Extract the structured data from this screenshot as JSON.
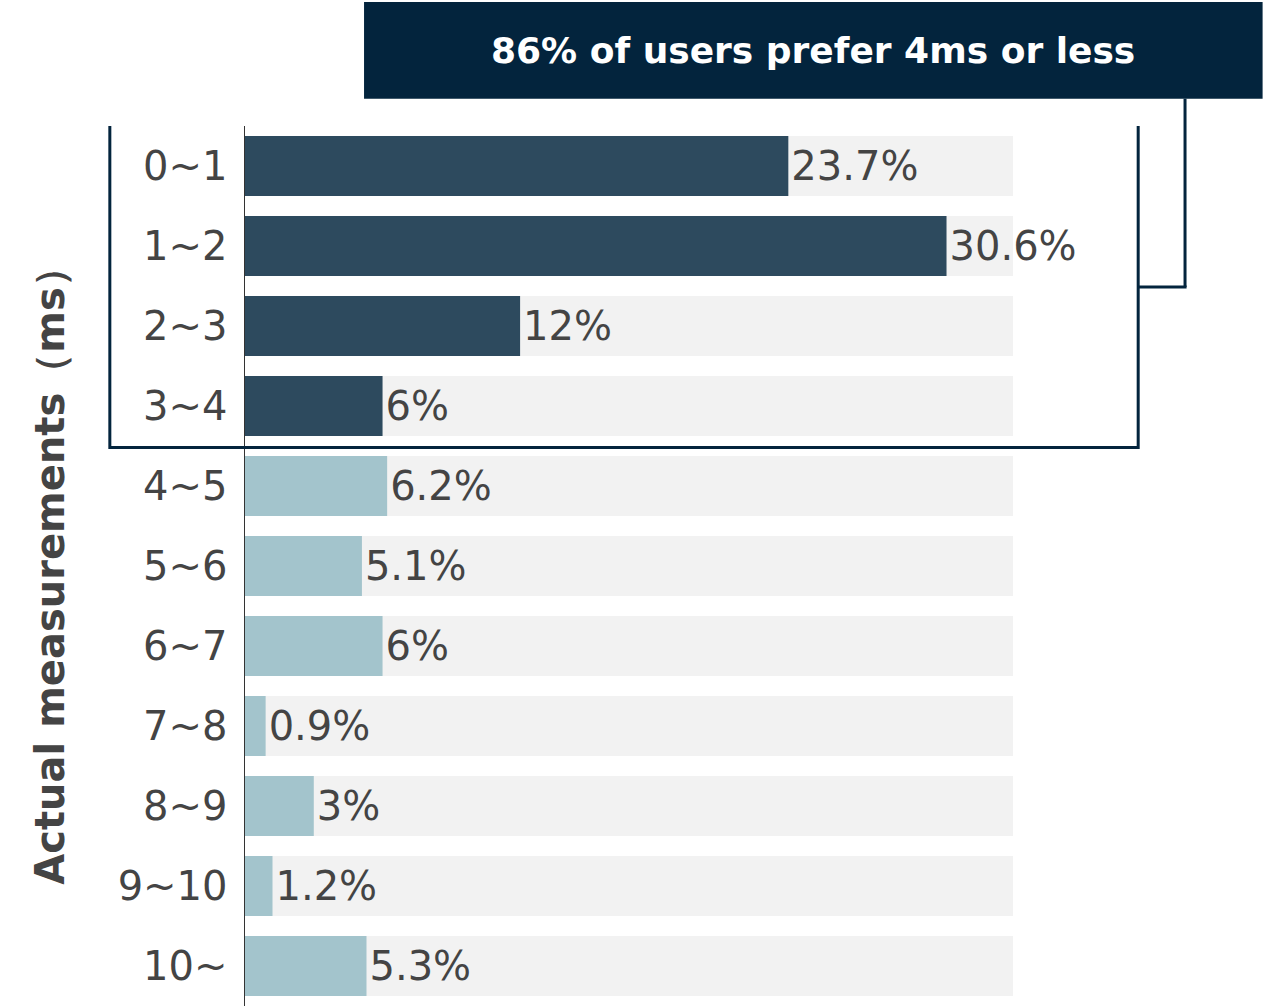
{
  "chart_data": {
    "type": "bar",
    "orientation": "horizontal",
    "annotation": "86% of users prefer 4ms or less",
    "y_label": "Actual measurements（ms）",
    "categories": [
      "0~1",
      "1~2",
      "2~3",
      "3~4",
      "4~5",
      "5~6",
      "6~7",
      "7~8",
      "8~9",
      "9~10",
      "10~"
    ],
    "values": [
      23.7,
      30.6,
      12,
      6,
      6.2,
      5.1,
      6,
      0.9,
      3,
      1.2,
      5.3
    ],
    "value_labels": [
      "23.7%",
      "30.6%",
      "12%",
      "6%",
      "6.2%",
      "5.1%",
      "6%",
      "0.9%",
      "3%",
      "1.2%",
      "5.3%"
    ],
    "colors": [
      "#2d4a5e",
      "#2d4a5e",
      "#2d4a5e",
      "#2d4a5e",
      "#a3c4cc",
      "#a3c4cc",
      "#a3c4cc",
      "#a3c4cc",
      "#a3c4cc",
      "#a3c4cc",
      "#a3c4cc"
    ],
    "xlim": [
      0,
      33.5
    ],
    "data_labels": true,
    "tick_labels": "y"
  }
}
